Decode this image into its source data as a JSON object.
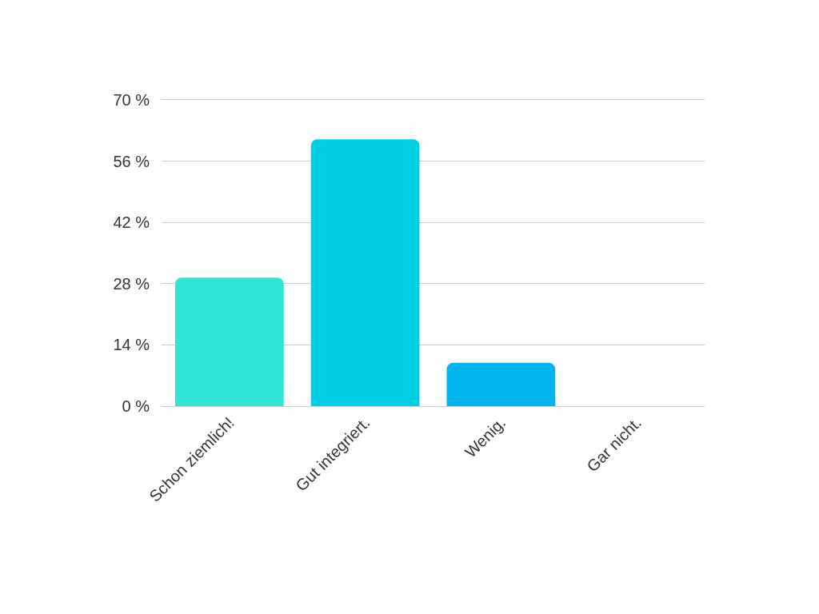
{
  "chart_data": {
    "type": "bar",
    "categories": [
      "Schon ziemlich!",
      "Gut integriert.",
      "Wenig.",
      "Gar nicht."
    ],
    "values": [
      29.4,
      61,
      9.9,
      0
    ],
    "colors": [
      "#2de6d4",
      "#00cfe6",
      "#00b4f0",
      "#00a0e0"
    ],
    "ylim": [
      0,
      70
    ],
    "yticks": [
      {
        "value": 0,
        "label": "0 %"
      },
      {
        "value": 14,
        "label": "14 %"
      },
      {
        "value": 28,
        "label": "28 %"
      },
      {
        "value": 42,
        "label": "42 %"
      },
      {
        "value": 56,
        "label": "56 %"
      },
      {
        "value": 70,
        "label": "70 %"
      }
    ],
    "grid": "y"
  }
}
